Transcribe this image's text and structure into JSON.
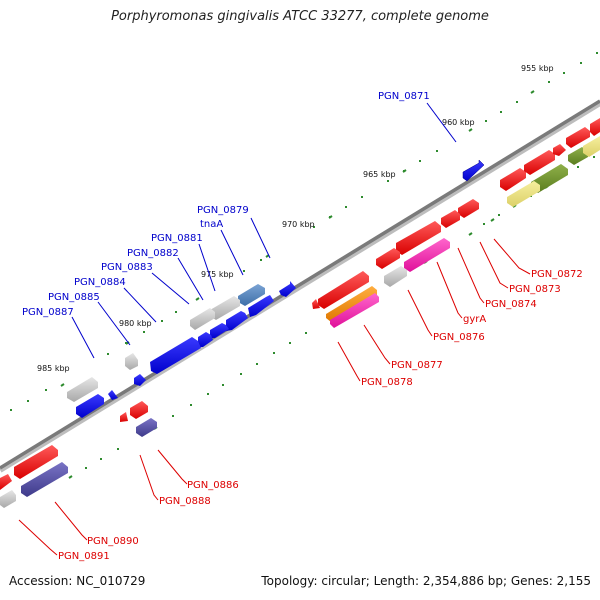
{
  "title": "Porphyromonas gingivalis ATCC 33277, complete genome",
  "footer": {
    "accession": "Accession: NC_010729",
    "summary": "Topology: circular; Length: 2,354,886 bp; Genes: 2,155"
  },
  "colors": {
    "backbone": "#8c8c8c",
    "tick_major": "#2e8b2e",
    "tick_minor": "#3a9a3a",
    "label_blue": "#0000cc",
    "label_red": "#dd0000"
  },
  "ticks": [
    {
      "label": "955 kbp",
      "kbp": 955
    },
    {
      "label": "960 kbp",
      "kbp": 960
    },
    {
      "label": "965 kbp",
      "kbp": 965
    },
    {
      "label": "970 kbp",
      "kbp": 970
    },
    {
      "label": "975 kbp",
      "kbp": 975
    },
    {
      "label": "980 kbp",
      "kbp": 980
    },
    {
      "label": "985 kbp",
      "kbp": 985
    }
  ],
  "gene_labels": [
    {
      "text": "PGN_0871",
      "strand": "outer"
    },
    {
      "text": "PGN_0879",
      "strand": "outer"
    },
    {
      "text": "tnaA",
      "strand": "outer"
    },
    {
      "text": "PGN_0881",
      "strand": "outer"
    },
    {
      "text": "PGN_0882",
      "strand": "outer"
    },
    {
      "text": "PGN_0883",
      "strand": "outer"
    },
    {
      "text": "PGN_0884",
      "strand": "outer"
    },
    {
      "text": "PGN_0885",
      "strand": "outer"
    },
    {
      "text": "PGN_0887",
      "strand": "outer"
    },
    {
      "text": "PGN_0872",
      "strand": "inner"
    },
    {
      "text": "PGN_0873",
      "strand": "inner"
    },
    {
      "text": "PGN_0874",
      "strand": "inner"
    },
    {
      "text": "gyrA",
      "strand": "inner"
    },
    {
      "text": "PGN_0876",
      "strand": "inner"
    },
    {
      "text": "PGN_0877",
      "strand": "inner"
    },
    {
      "text": "PGN_0878",
      "strand": "inner"
    },
    {
      "text": "PGN_0886",
      "strand": "inner"
    },
    {
      "text": "PGN_0888",
      "strand": "inner"
    },
    {
      "text": "PGN_0890",
      "strand": "inner"
    },
    {
      "text": "PGN_0891",
      "strand": "inner"
    }
  ]
}
